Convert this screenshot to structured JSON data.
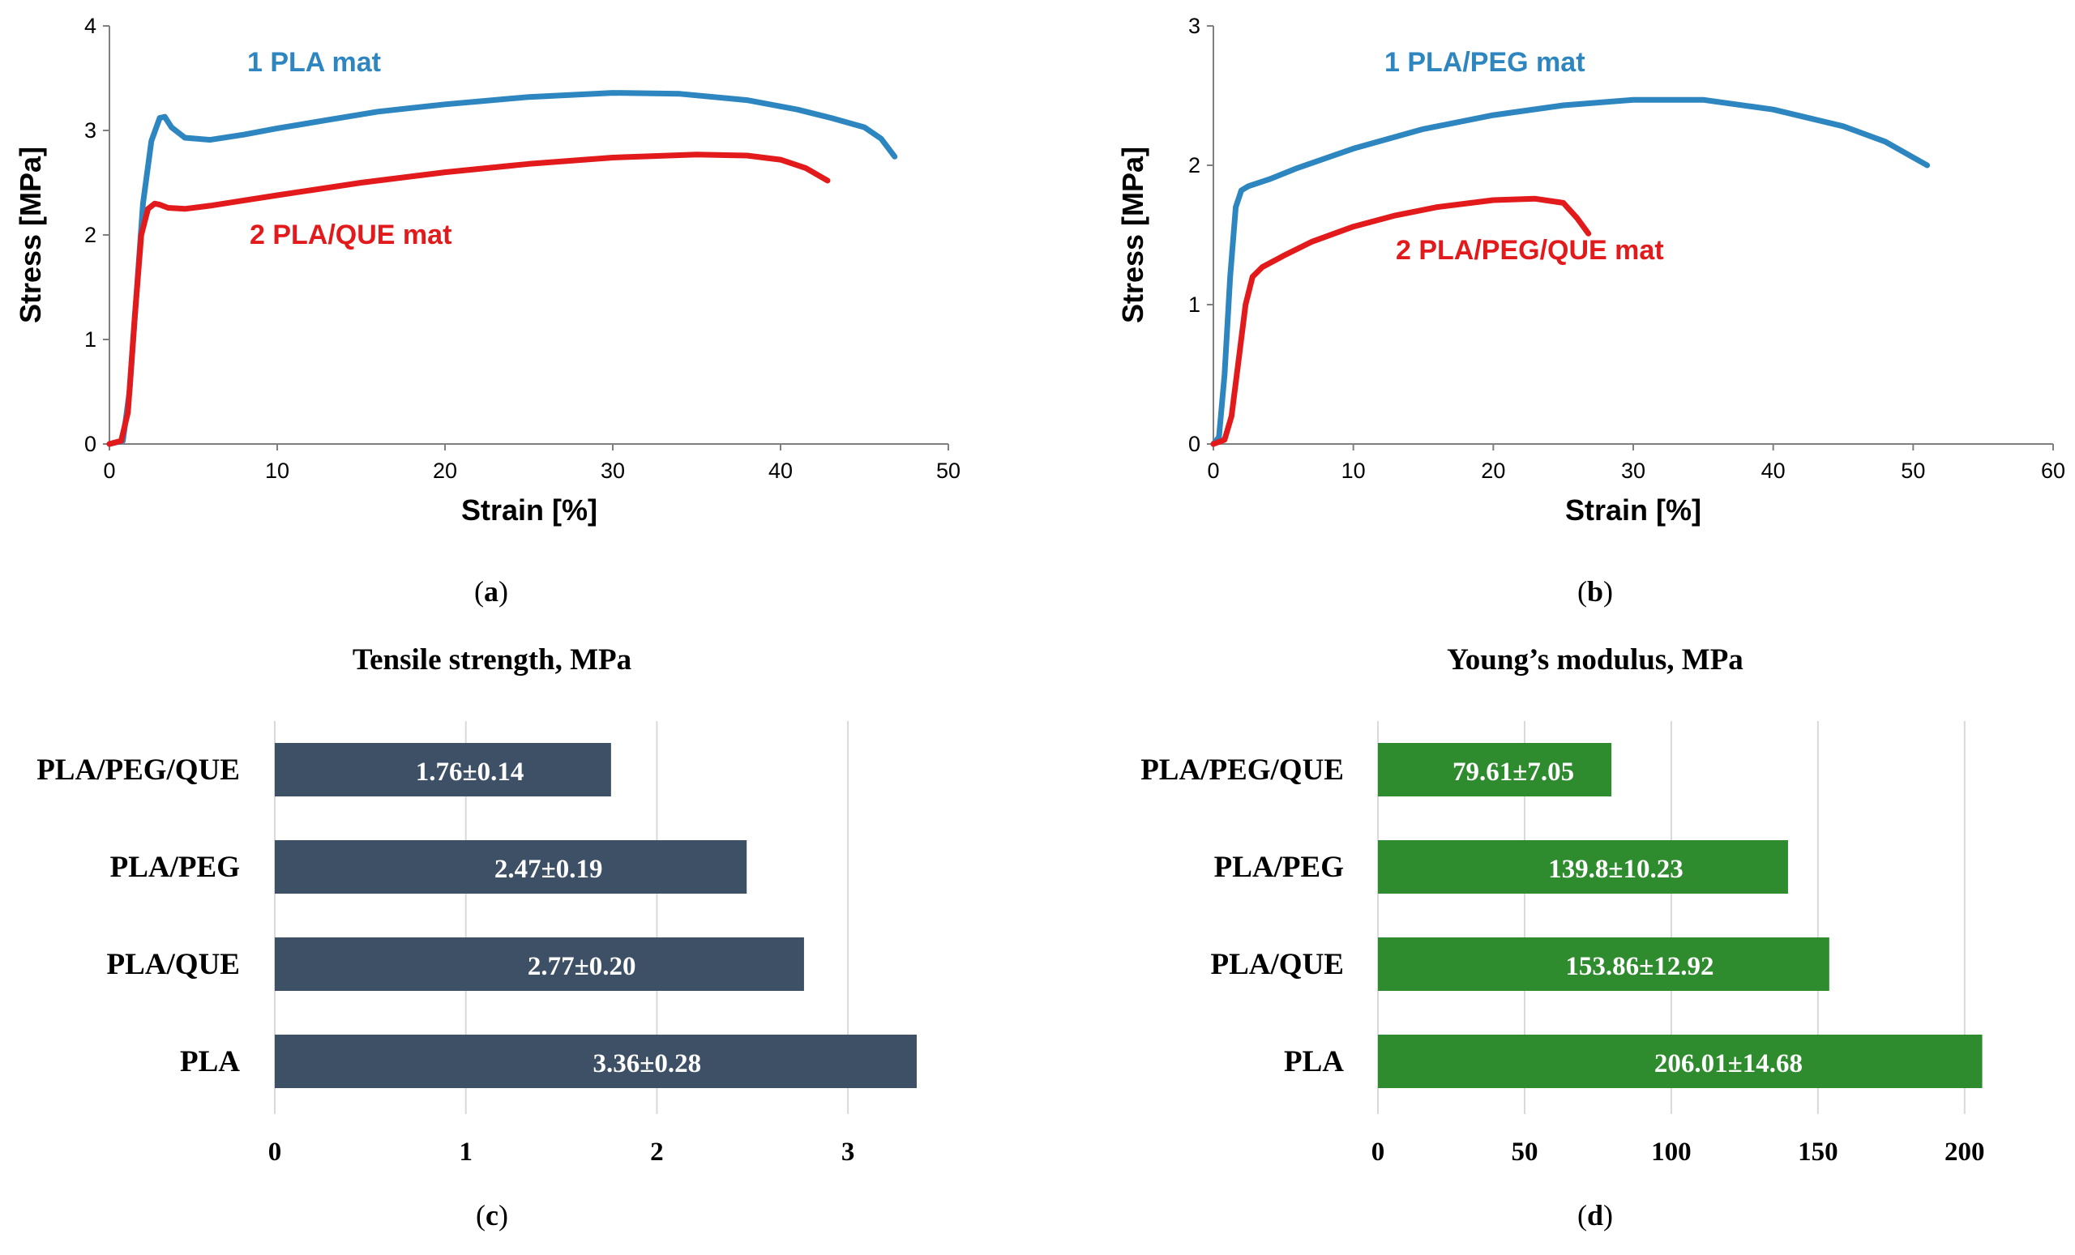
{
  "chart_data": [
    {
      "panel": "a",
      "type": "line",
      "xlabel": "Strain [%]",
      "ylabel": "Stress [MPa]",
      "xlim": [
        0,
        50
      ],
      "ylim": [
        0,
        4
      ],
      "xticks": [
        0,
        10,
        20,
        30,
        40,
        50
      ],
      "yticks": [
        0,
        1,
        2,
        3,
        4
      ],
      "caption": "a",
      "series": [
        {
          "name": "1 PLA mat",
          "color": "#2e86c1",
          "x": [
            0,
            0.8,
            1.2,
            1.6,
            2.0,
            2.5,
            3.0,
            3.3,
            3.7,
            4.5,
            6,
            8,
            10,
            13,
            16,
            20,
            25,
            30,
            34,
            38,
            41,
            43,
            45,
            46,
            46.8
          ],
          "y": [
            0,
            0.03,
            0.5,
            1.4,
            2.3,
            2.9,
            3.12,
            3.13,
            3.03,
            2.93,
            2.91,
            2.96,
            3.02,
            3.1,
            3.18,
            3.25,
            3.32,
            3.36,
            3.35,
            3.29,
            3.2,
            3.12,
            3.03,
            2.92,
            2.75
          ]
        },
        {
          "name": "2 PLA/QUE mat",
          "color": "#e31a1c",
          "x": [
            0,
            0.7,
            1.1,
            1.5,
            1.9,
            2.3,
            2.7,
            3.0,
            3.5,
            4.5,
            6,
            8,
            10,
            15,
            20,
            25,
            30,
            35,
            38,
            40,
            41.5,
            42.8
          ],
          "y": [
            0,
            0.03,
            0.3,
            1.2,
            2.0,
            2.25,
            2.3,
            2.29,
            2.26,
            2.25,
            2.28,
            2.33,
            2.38,
            2.5,
            2.6,
            2.68,
            2.74,
            2.77,
            2.76,
            2.72,
            2.64,
            2.52
          ]
        }
      ]
    },
    {
      "panel": "b",
      "type": "line",
      "xlabel": "Strain [%]",
      "ylabel": "Stress [MPa]",
      "xlim": [
        0,
        60
      ],
      "ylim": [
        0,
        3
      ],
      "xticks": [
        0,
        10,
        20,
        30,
        40,
        50,
        60
      ],
      "yticks": [
        0,
        1,
        2,
        3
      ],
      "caption": "b",
      "series": [
        {
          "name": "1 PLA/PEG mat",
          "color": "#2e86c1",
          "x": [
            0,
            0.4,
            0.8,
            1.2,
            1.6,
            2.0,
            2.5,
            4,
            6,
            10,
            15,
            20,
            25,
            30,
            35,
            40,
            45,
            48,
            51
          ],
          "y": [
            0,
            0.05,
            0.5,
            1.2,
            1.7,
            1.82,
            1.85,
            1.9,
            1.98,
            2.12,
            2.26,
            2.36,
            2.43,
            2.47,
            2.47,
            2.4,
            2.28,
            2.17,
            2.0
          ]
        },
        {
          "name": "2 PLA/PEG/QUE mat",
          "color": "#e31a1c",
          "x": [
            0,
            0.8,
            1.3,
            1.8,
            2.3,
            2.8,
            3.5,
            5,
            7,
            10,
            13,
            16,
            20,
            23,
            25,
            26,
            26.8
          ],
          "y": [
            0,
            0.03,
            0.2,
            0.6,
            1.0,
            1.2,
            1.27,
            1.35,
            1.45,
            1.56,
            1.64,
            1.7,
            1.75,
            1.76,
            1.73,
            1.62,
            1.51
          ]
        }
      ]
    },
    {
      "panel": "c",
      "type": "bar",
      "orientation": "horizontal",
      "title": "Tensile strength, MPa",
      "color": "#3d5066",
      "xlim": [
        0,
        3.5
      ],
      "xticks": [
        0,
        1,
        2,
        3
      ],
      "caption": "c",
      "categories": [
        "PLA/PEG/QUE",
        "PLA/PEG",
        "PLA/QUE",
        "PLA"
      ],
      "values": [
        1.76,
        2.47,
        2.77,
        3.36
      ],
      "labels": [
        "1.76±0.14",
        "2.47±0.19",
        "2.77±0.20",
        "3.36±0.28"
      ]
    },
    {
      "panel": "d",
      "type": "bar",
      "orientation": "horizontal",
      "title": "Young’s modulus, MPa",
      "color": "#2e8b2e",
      "xlim": [
        0,
        210
      ],
      "xticks": [
        0,
        50,
        100,
        150,
        200
      ],
      "caption": "d",
      "categories": [
        "PLA/PEG/QUE",
        "PLA/PEG",
        "PLA/QUE",
        "PLA"
      ],
      "values": [
        79.61,
        139.8,
        153.86,
        206.01
      ],
      "labels": [
        "79.61±7.05",
        "139.8±10.23",
        "153.86±12.92",
        "206.01±14.68"
      ]
    }
  ]
}
